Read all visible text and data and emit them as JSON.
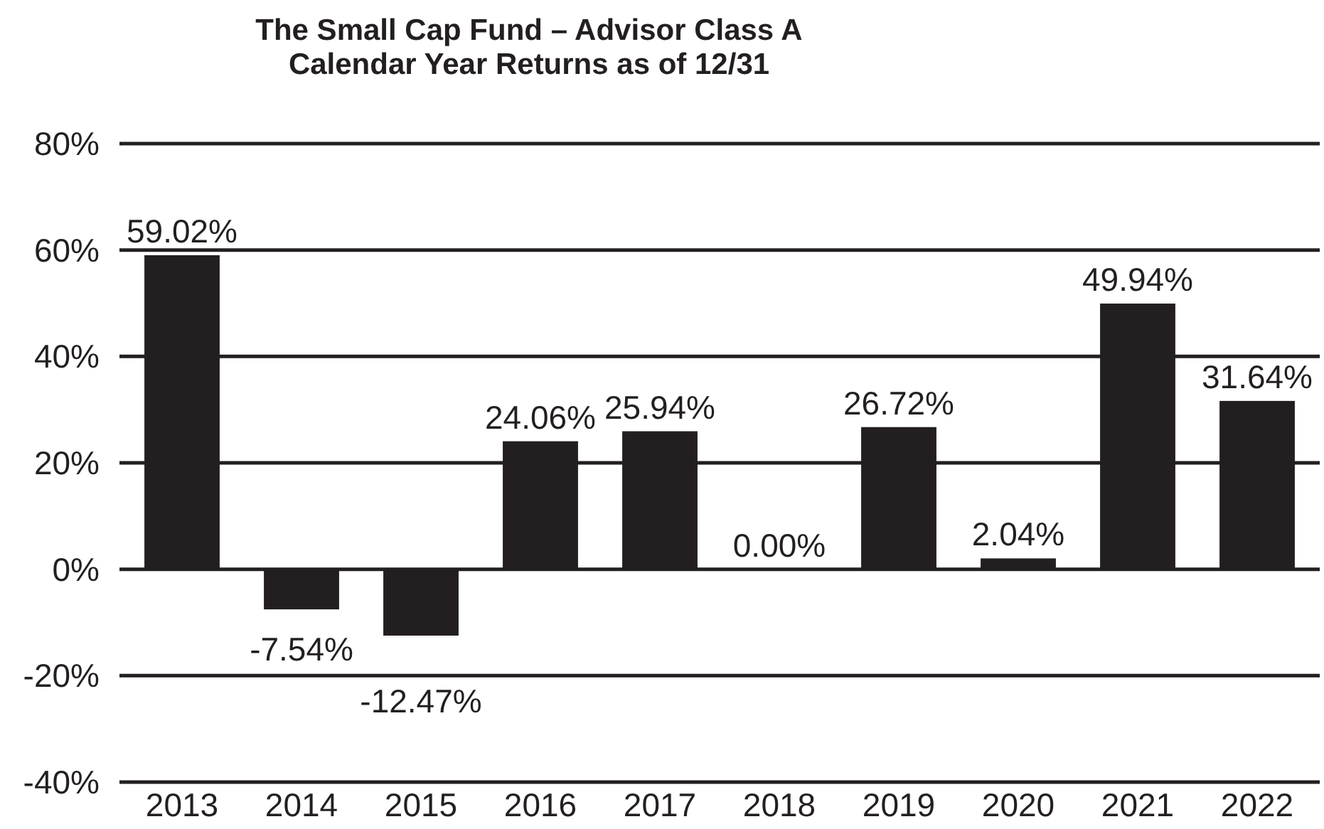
{
  "chart_data": {
    "type": "bar",
    "title": "The Small Cap Fund – Advisor Class A",
    "subtitle": "Calendar Year Returns as of 12/31",
    "categories": [
      "2013",
      "2014",
      "2015",
      "2016",
      "2017",
      "2018",
      "2019",
      "2020",
      "2021",
      "2022"
    ],
    "values": [
      59.02,
      -7.54,
      -12.47,
      24.06,
      25.94,
      0,
      26.72,
      2.04,
      49.94,
      31.64
    ],
    "value_labels": [
      "59.02%",
      "-7.54%",
      "-12.47%",
      "24.06%",
      "25.94%",
      "0.00%",
      "26.72%",
      "2.04%",
      "49.94%",
      "31.64%"
    ],
    "color": "#231f20",
    "ylim": [
      -40,
      80
    ],
    "yticks": [
      {
        "value": -40,
        "label": "-40%"
      },
      {
        "value": -20,
        "label": "-20%"
      },
      {
        "value": 0,
        "label": "0%"
      },
      {
        "value": 20,
        "label": "20%"
      },
      {
        "value": 40,
        "label": "40%"
      },
      {
        "value": 60,
        "label": "60%"
      },
      {
        "value": 80,
        "label": "80%"
      }
    ],
    "grid": "y"
  }
}
